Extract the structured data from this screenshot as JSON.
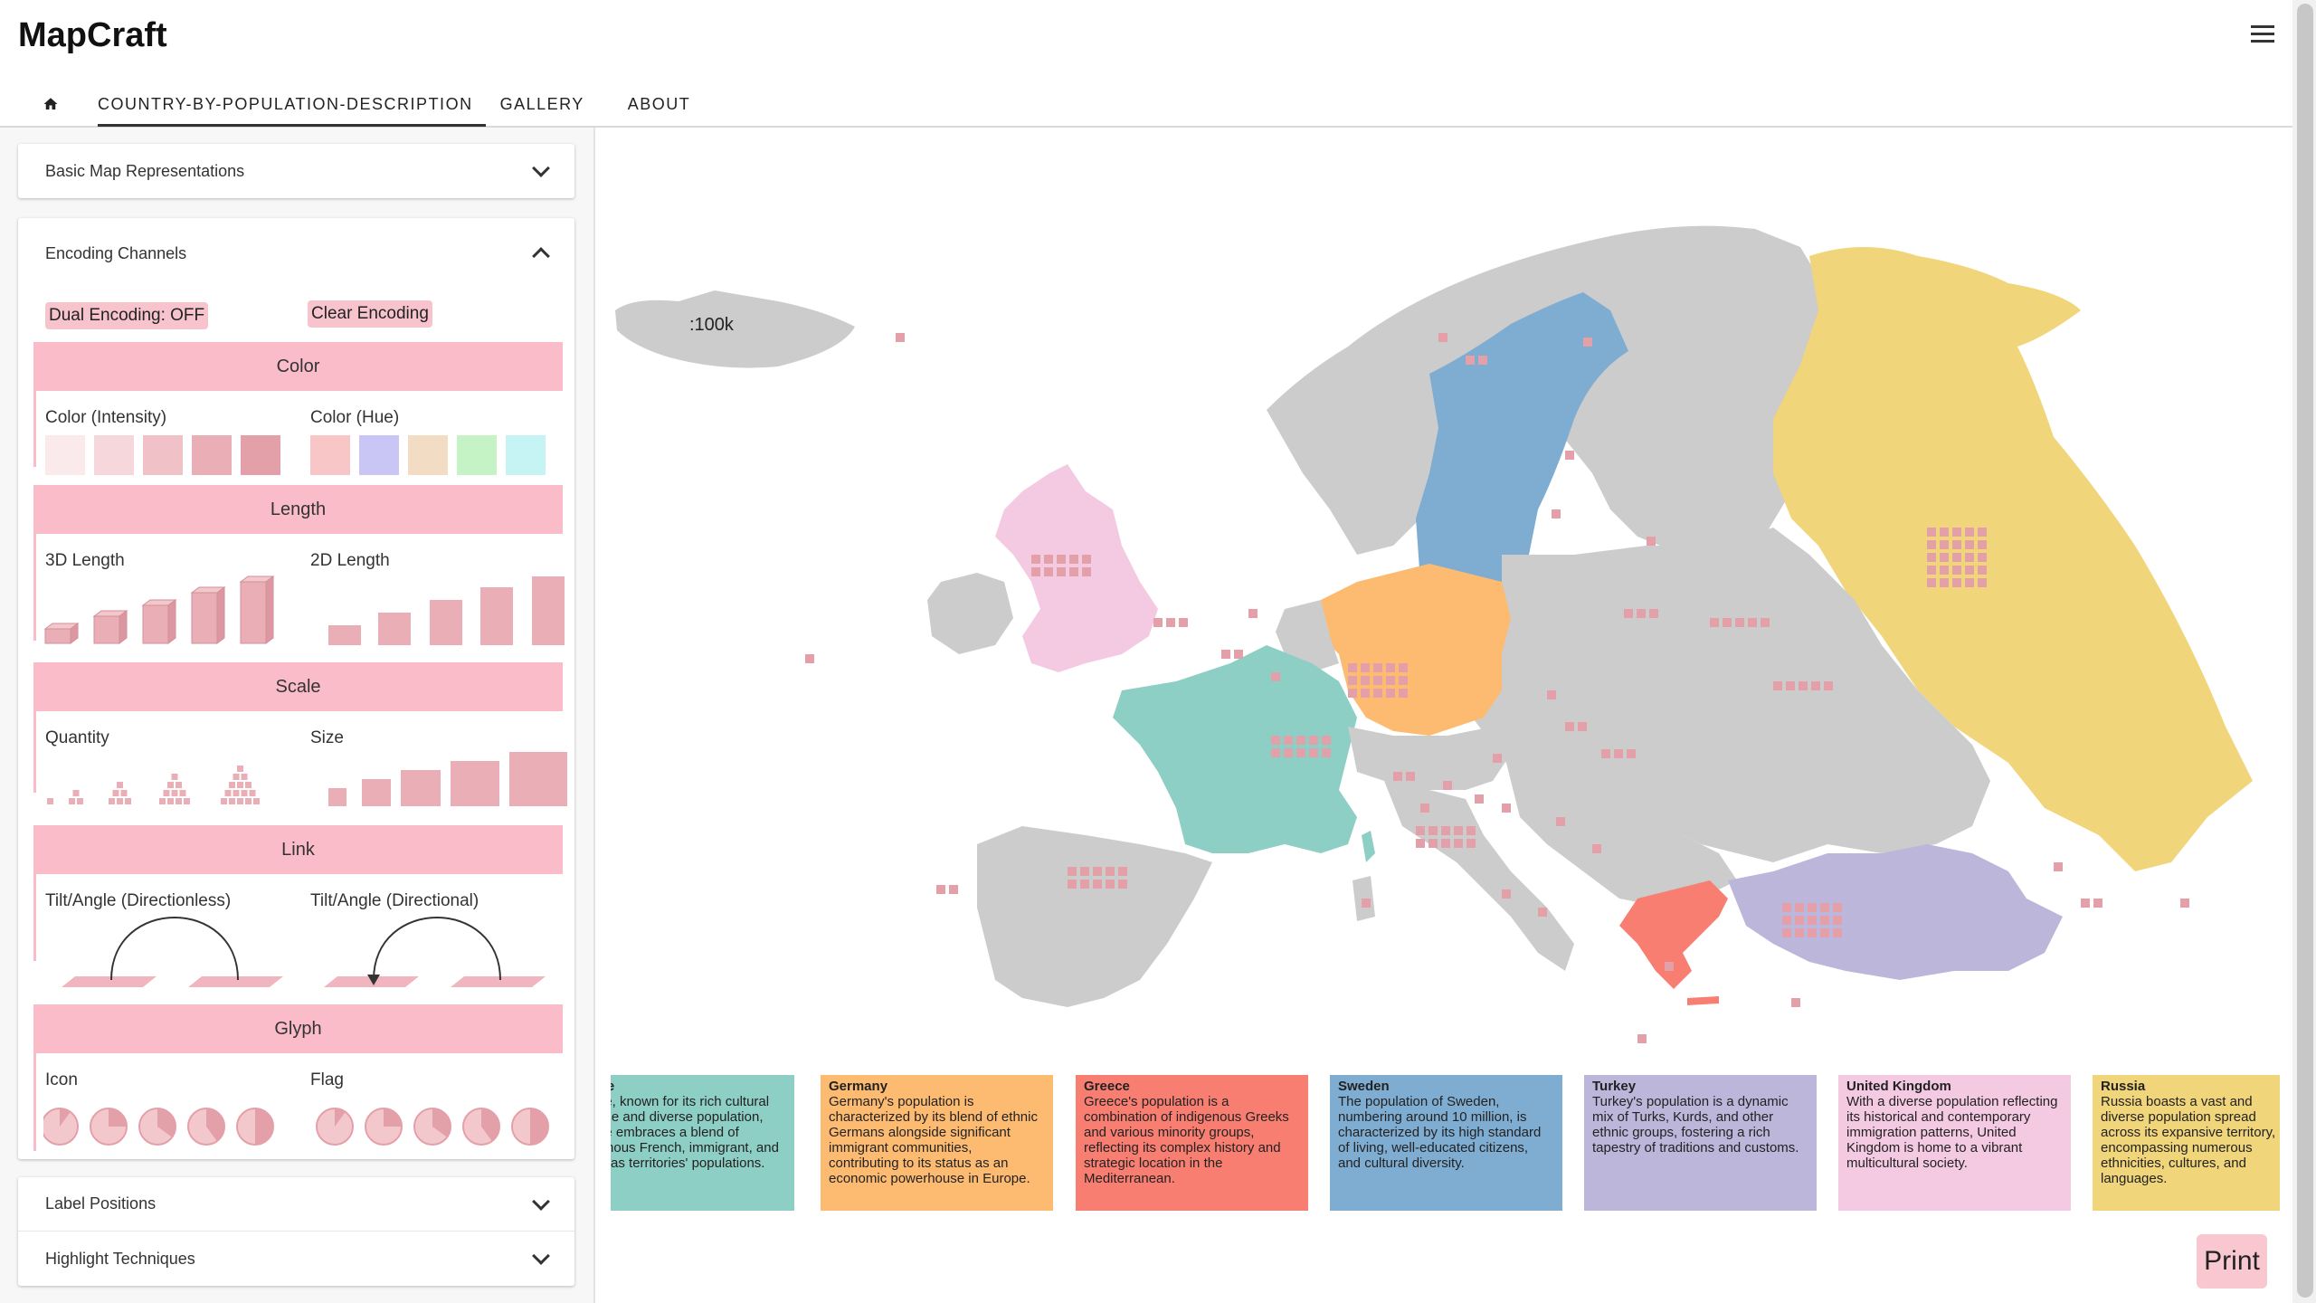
{
  "app": {
    "title": "MapCraft"
  },
  "nav": {
    "tabs": [
      {
        "label": "COUNTRY-BY-POPULATION-DESCRIPTION"
      },
      {
        "label": "GALLERY"
      },
      {
        "label": "ABOUT"
      }
    ]
  },
  "sidebar": {
    "basic_map": {
      "label": "Basic Map Representations"
    },
    "encoding": {
      "label": "Encoding Channels",
      "dual_encoding_label": "Dual Encoding: OFF",
      "clear_label": "Clear Encoding",
      "sections": {
        "color": {
          "title": "Color",
          "left": "Color (Intensity)",
          "right": "Color (Hue)"
        },
        "length": {
          "title": "Length",
          "left": "3D Length",
          "right": "2D Length"
        },
        "scale": {
          "title": "Scale",
          "left": "Quantity",
          "right": "Size"
        },
        "link": {
          "title": "Link",
          "left": "Tilt/Angle (Directionless)",
          "right": "Tilt/Angle (Directional)"
        },
        "glyph": {
          "title": "Glyph",
          "left": "Icon",
          "right": "Flag"
        }
      },
      "intensity_colors": [
        "#fbeaec",
        "#f6d7db",
        "#f0c2c8",
        "#eaafb6",
        "#e4a0a8"
      ],
      "hue_colors": [
        "#f8c6c6",
        "#c9c6f6",
        "#f3dcc4",
        "#c6f3c6",
        "#c6f3f3"
      ]
    },
    "label_positions": {
      "label": "Label Positions"
    },
    "highlight": {
      "label": "Highlight Techniques"
    }
  },
  "map": {
    "scale_label": ":100k",
    "country_colors": {
      "france": "#8ecfc5",
      "germany": "#fdbb72",
      "greece": "#f87e72",
      "sweden": "#7fadd2",
      "turkey": "#bcb6da",
      "uk": "#f4cae3",
      "russia": "#f0d57a",
      "other": "#cccccc"
    }
  },
  "cards": [
    {
      "title": "France",
      "text": "France, known for its rich cultural heritage and diverse population, France embraces a blend of indigenous French, immigrant, and overseas territories' populations.",
      "color": "#8ecfc5"
    },
    {
      "title": "Germany",
      "text": "Germany's population is characterized by its blend of ethnic Germans alongside significant immigrant communities, contributing to its status as an economic powerhouse in Europe.",
      "color": "#fdbb72"
    },
    {
      "title": "Greece",
      "text": "Greece's population is a combination of indigenous Greeks and various minority groups, reflecting its complex history and strategic location in the Mediterranean.",
      "color": "#f87e72"
    },
    {
      "title": "Sweden",
      "text": "The population of Sweden, numbering around 10 million, is characterized by its high standard of living, well-educated citizens, and cultural diversity.",
      "color": "#7fadd2"
    },
    {
      "title": "Turkey",
      "text": "Turkey's population is a dynamic mix of Turks, Kurds, and other ethnic groups, fostering a rich tapestry of traditions and customs.",
      "color": "#bcb6da"
    },
    {
      "title": "United Kingdom",
      "text": "With a diverse population reflecting its historical and contemporary immigration patterns, United Kingdom is home to a vibrant multicultural society.",
      "color": "#f4cae3"
    },
    {
      "title": "Russia",
      "text": "Russia boasts a vast and diverse population spread across its expansive territory, encompassing numerous ethnicities, cultures, and languages.",
      "color": "#f0d57a"
    }
  ],
  "print": {
    "label": "Print"
  }
}
